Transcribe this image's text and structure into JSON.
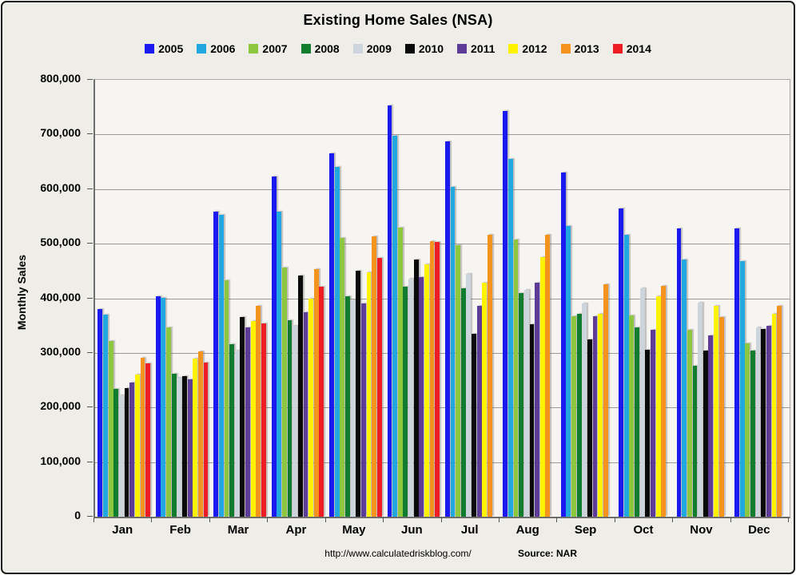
{
  "title": "Existing Home Sales (NSA)",
  "y_axis": {
    "label": "Monthly Sales",
    "ticks_top_down": [
      "800,000",
      "700,000",
      "600,000",
      "500,000",
      "400,000",
      "300,000",
      "200,000",
      "100,000",
      "0"
    ]
  },
  "footer": {
    "url": "http://www.calculatedriskblog.com/",
    "source": "Source: NAR"
  },
  "chart_data": {
    "type": "bar",
    "title": "Existing Home Sales (NSA)",
    "xlabel": "",
    "ylabel": "Monthly Sales",
    "ylim": [
      0,
      800000
    ],
    "ytick_interval": 100000,
    "grid": true,
    "legend_position": "top",
    "categories": [
      "Jan",
      "Feb",
      "Mar",
      "Apr",
      "May",
      "Jun",
      "Jul",
      "Aug",
      "Sep",
      "Oct",
      "Nov",
      "Dec"
    ],
    "series": [
      {
        "name": "2005",
        "color": "#1a1af0",
        "values": [
          380000,
          403000,
          558000,
          623000,
          666000,
          753000,
          688000,
          743000,
          630000,
          564000,
          528000,
          528000
        ]
      },
      {
        "name": "2006",
        "color": "#22a8e0",
        "values": [
          370000,
          401000,
          553000,
          558000,
          641000,
          698000,
          604000,
          655000,
          532000,
          517000,
          471000,
          468000
        ]
      },
      {
        "name": "2007",
        "color": "#8dc63f",
        "values": [
          322000,
          347000,
          433000,
          456000,
          510000,
          530000,
          498000,
          508000,
          367000,
          369000,
          342000,
          318000
        ]
      },
      {
        "name": "2008",
        "color": "#0f7d2d",
        "values": [
          234000,
          262000,
          316000,
          360000,
          404000,
          421000,
          419000,
          409000,
          371000,
          347000,
          276000,
          304000
        ]
      },
      {
        "name": "2009",
        "color": "#ccd4dc",
        "values": [
          222000,
          255000,
          304000,
          349000,
          396000,
          436000,
          444000,
          415000,
          391000,
          419000,
          392000,
          346000
        ]
      },
      {
        "name": "2010",
        "color": "#0a0a0a",
        "values": [
          235000,
          258000,
          366000,
          442000,
          450000,
          471000,
          335000,
          352000,
          324000,
          306000,
          304000,
          343000
        ]
      },
      {
        "name": "2011",
        "color": "#5c3c96",
        "values": [
          246000,
          252000,
          347000,
          374000,
          391000,
          439000,
          386000,
          428000,
          367000,
          342000,
          332000,
          349000
        ]
      },
      {
        "name": "2012",
        "color": "#fff200",
        "values": [
          260000,
          289000,
          359000,
          399000,
          447000,
          462000,
          428000,
          475000,
          371000,
          403000,
          386000,
          372000
        ]
      },
      {
        "name": "2013",
        "color": "#f6921e",
        "values": [
          291000,
          303000,
          386000,
          454000,
          514000,
          505000,
          517000,
          516000,
          425000,
          422000,
          366000,
          386000
        ]
      },
      {
        "name": "2014",
        "color": "#ee1c23",
        "values": [
          281000,
          282000,
          354000,
          421000,
          474000,
          503000,
          null,
          null,
          null,
          null,
          null,
          null
        ]
      }
    ]
  }
}
